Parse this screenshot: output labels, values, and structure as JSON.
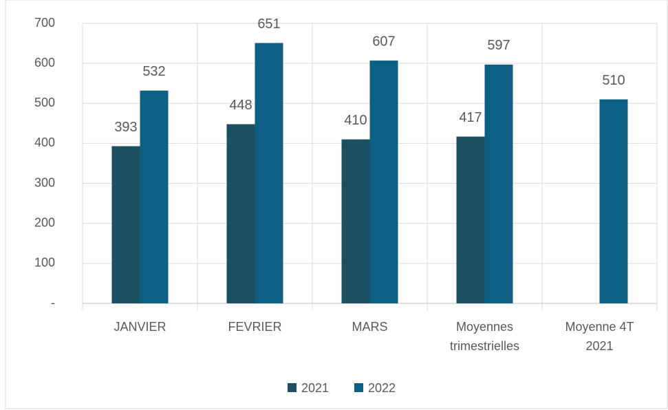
{
  "chart_data": {
    "type": "bar",
    "categories": [
      "JANVIER",
      "FEVRIER",
      "MARS",
      "Moyennes trimestrielles",
      "Moyenne 4T 2021"
    ],
    "series": [
      {
        "name": "2021",
        "color": "#1b4f61",
        "values": [
          393,
          448,
          410,
          417,
          null
        ]
      },
      {
        "name": "2022",
        "color": "#0d5f83",
        "values": [
          532,
          651,
          607,
          597,
          510
        ]
      }
    ],
    "ylim": [
      0,
      700
    ],
    "yticks": [
      {
        "value": 0,
        "label": "-"
      },
      100,
      200,
      300,
      400,
      500,
      600,
      700
    ],
    "grid": true,
    "legend": "bottom"
  }
}
